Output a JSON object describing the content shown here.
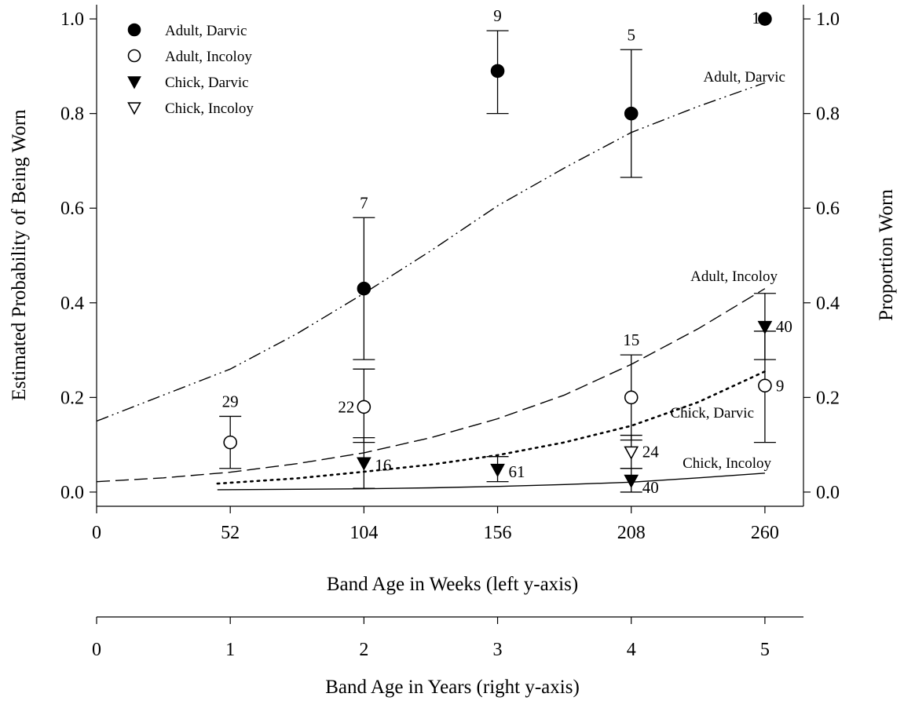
{
  "chart_data": {
    "type": "scatter",
    "xlabel": "Band Age in Weeks (left y-axis)",
    "ylabel": "Estimated Probability of Being Worn",
    "x2label": "Band Age in Years (right y-axis)",
    "y2label": "Proportion Worn",
    "xlim": [
      0,
      275
    ],
    "ylim": [
      -0.03,
      1.03
    ],
    "x_ticks": [
      0,
      52,
      104,
      156,
      208,
      260
    ],
    "x2_ticks": [
      0,
      1,
      2,
      3,
      4,
      5
    ],
    "y_ticks": [
      0.0,
      0.2,
      0.4,
      0.6,
      0.8,
      1.0
    ],
    "y_tick_labels": [
      "0.0",
      "0.2",
      "0.4",
      "0.6",
      "0.8",
      "1.0"
    ],
    "grid": false,
    "legend_position": "top-left",
    "series": [
      {
        "name": "Adult, Darvic",
        "marker": "filled-circle",
        "points": [
          {
            "x": 104,
            "y": 0.43,
            "lo": 0.28,
            "hi": 0.58,
            "n": "7"
          },
          {
            "x": 156,
            "y": 0.89,
            "lo": 0.8,
            "hi": 0.975,
            "n": "9"
          },
          {
            "x": 208,
            "y": 0.8,
            "lo": 0.665,
            "hi": 0.935,
            "n": "5"
          },
          {
            "x": 260,
            "y": 1.0,
            "n": "1"
          }
        ],
        "curve": {
          "label": "Adult, Darvic",
          "style": "dash-dot-dot",
          "x": [
            0,
            26,
            52,
            78,
            104,
            130,
            156,
            182,
            208,
            234,
            260
          ],
          "y": [
            0.15,
            0.205,
            0.26,
            0.335,
            0.42,
            0.51,
            0.605,
            0.685,
            0.76,
            0.815,
            0.865
          ]
        }
      },
      {
        "name": "Adult, Incoloy",
        "marker": "open-circle",
        "points": [
          {
            "x": 52,
            "y": 0.105,
            "lo": 0.05,
            "hi": 0.16,
            "n": "29"
          },
          {
            "x": 104,
            "y": 0.18,
            "lo": 0.105,
            "hi": 0.26,
            "n": "22"
          },
          {
            "x": 208,
            "y": 0.2,
            "lo": 0.11,
            "hi": 0.29,
            "n": "15"
          },
          {
            "x": 260,
            "y": 0.225,
            "lo": 0.105,
            "hi": 0.34,
            "n": "9"
          }
        ],
        "curve": {
          "label": "Adult, Incoloy",
          "style": "long-dash",
          "x": [
            0,
            26,
            52,
            78,
            104,
            130,
            156,
            182,
            208,
            234,
            260
          ],
          "y": [
            0.022,
            0.03,
            0.042,
            0.06,
            0.083,
            0.115,
            0.155,
            0.205,
            0.27,
            0.345,
            0.43
          ]
        }
      },
      {
        "name": "Chick, Darvic",
        "marker": "filled-triangle-down",
        "points": [
          {
            "x": 104,
            "y": 0.062,
            "lo": 0.008,
            "hi": 0.115,
            "n": "16"
          },
          {
            "x": 156,
            "y": 0.048,
            "lo": 0.022,
            "hi": 0.075,
            "n": "61"
          },
          {
            "x": 208,
            "y": 0.025,
            "lo": 0.0,
            "hi": 0.05,
            "n": "40"
          },
          {
            "x": 260,
            "y": 0.35,
            "lo": 0.28,
            "hi": 0.42,
            "n": "40"
          }
        ],
        "curve": {
          "label": "Chick, Darvic",
          "style": "dotted",
          "x": [
            47,
            78,
            104,
            130,
            156,
            182,
            208,
            234,
            260
          ],
          "y": [
            0.018,
            0.029,
            0.043,
            0.058,
            0.078,
            0.105,
            0.14,
            0.19,
            0.255
          ]
        }
      },
      {
        "name": "Chick, Incoloy",
        "marker": "open-triangle-down",
        "points": [
          {
            "x": 208,
            "y": 0.085,
            "lo": 0.05,
            "hi": 0.12,
            "n": "24"
          }
        ],
        "curve": {
          "label": "Chick, Incoloy",
          "style": "solid",
          "x": [
            47,
            78,
            104,
            130,
            156,
            182,
            208,
            234,
            260
          ],
          "y": [
            0.005,
            0.006,
            0.007,
            0.009,
            0.012,
            0.016,
            0.021,
            0.03,
            0.04
          ]
        }
      }
    ]
  }
}
